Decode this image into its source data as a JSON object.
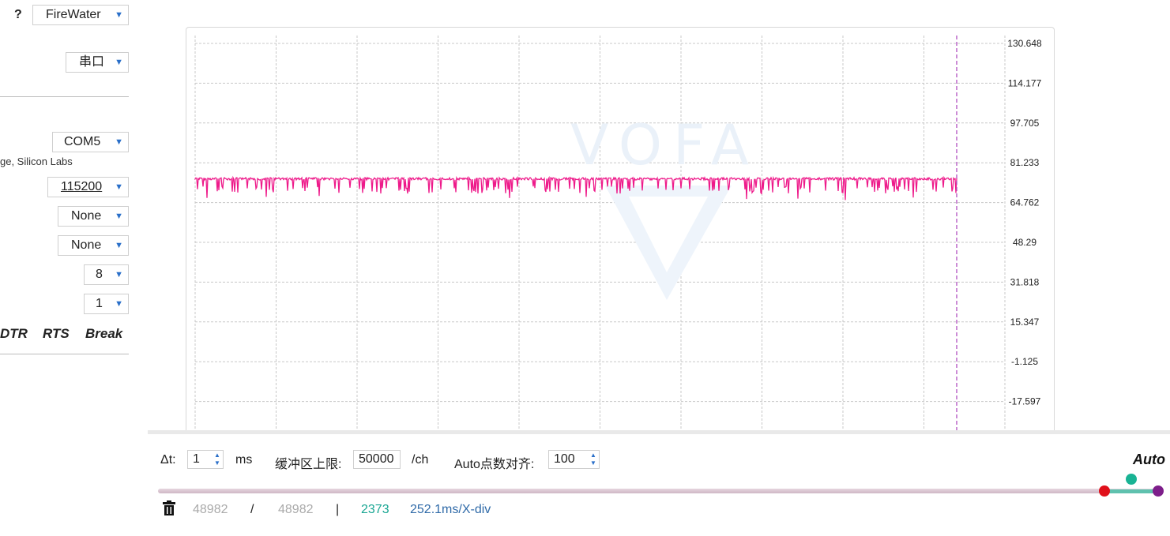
{
  "left_panel": {
    "help_label": "?",
    "protocol": "FireWater",
    "interface": "串口",
    "port": "COM5",
    "port_description": "ge, Silicon Labs",
    "baud_rate": "115200",
    "flow_control": "None",
    "parity": "None",
    "data_bits": "8",
    "stop_bits": "1",
    "signals": {
      "dtr": "DTR",
      "rts": "RTS",
      "break": "Break"
    }
  },
  "chart_data": {
    "type": "line",
    "watermark": "VOFA",
    "y_ticks": [
      "130.648",
      "114.177",
      "97.705",
      "81.233",
      "64.762",
      "48.29",
      "31.818",
      "15.347",
      "-1.125",
      "-17.597"
    ],
    "ylim": [
      -34.07,
      130.648
    ],
    "series": [
      {
        "color": "#ee1a8a",
        "baseline": 74.6,
        "dip_min": 68.5,
        "deep_dip_min": 65.8
      }
    ],
    "grid": true,
    "cursor_line_color": "#b04fbf"
  },
  "bottom_bar": {
    "dt_label": "Δt:",
    "dt_value": "1",
    "dt_unit": "ms",
    "buffer_label": "缓冲区上限:",
    "buffer_value": "50000",
    "buffer_unit": "/ch",
    "auto_align_label": "Auto点数对齐:",
    "auto_align_value": "100",
    "auto_label": "Auto",
    "stats": {
      "count_a": "48982",
      "slash": "/",
      "count_b": "48982",
      "sep": "|",
      "count_c": "2373",
      "per_div": "252.1ms/X-div"
    },
    "colors": {
      "knob_left": "#e0101a",
      "knob_mid": "#19b394",
      "knob_right": "#7d1e8a"
    }
  }
}
